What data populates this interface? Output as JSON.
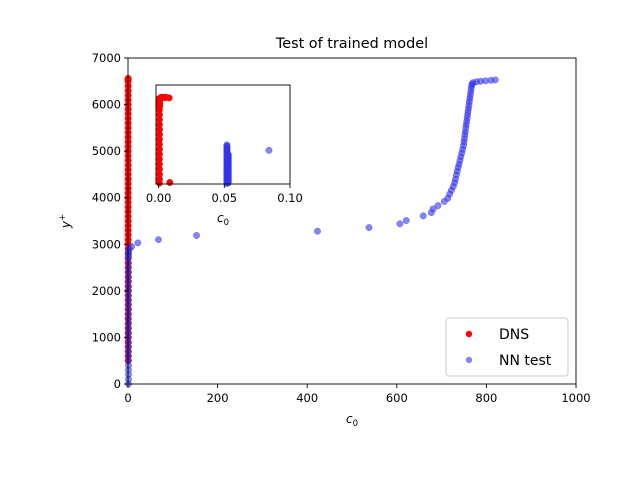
{
  "chart_data": [
    {
      "type": "scatter",
      "title": "Test of trained model",
      "xlabel_base": "c",
      "xlabel_sub": "0",
      "ylabel_base": "y",
      "ylabel_sup": "+",
      "xlim": [
        0,
        1000
      ],
      "ylim": [
        0,
        7000
      ],
      "xticks": [
        0,
        200,
        400,
        600,
        800,
        1000
      ],
      "xtick_labels": [
        "0",
        "200",
        "400",
        "600",
        "800",
        "1000"
      ],
      "yticks": [
        0,
        1000,
        2000,
        3000,
        4000,
        5000,
        6000,
        7000
      ],
      "ytick_labels": [
        "0",
        "1000",
        "2000",
        "3000",
        "4000",
        "5000",
        "6000",
        "7000"
      ],
      "grid": false,
      "legend_placement": "bottom-right",
      "series": [
        {
          "name": "DNS",
          "color": "#ff0000",
          "x": [
            0.3,
            0.3,
            0.3,
            0.3,
            0.3,
            0.3,
            0.3,
            0.3,
            0.3,
            0.3,
            0.3,
            0.3,
            0.3,
            0.3,
            0.3,
            0.3,
            0.3,
            0.3,
            0.3,
            0.3,
            0.3,
            0.3,
            0.3,
            0.3,
            0.3,
            0.3,
            0.3,
            0.3,
            0.3,
            0.3,
            0.3,
            0.3,
            0.3,
            0.3,
            0.3,
            0.3,
            0.3,
            0.3,
            0.3,
            0.3,
            0.3,
            0.3,
            0.3,
            0.3,
            0.3,
            0.3,
            0.3,
            0.3,
            0.3,
            0.3,
            0.3,
            0.3,
            0.3,
            0.3,
            0.3,
            0.3,
            0.3,
            0.3,
            0.3,
            0.3,
            0.3,
            0.3,
            0.3,
            0.3,
            0.3,
            0.3,
            0.3
          ],
          "y": [
            4100,
            4200,
            4300,
            4400,
            4500,
            4600,
            4700,
            4800,
            4900,
            5000,
            5100,
            5200,
            5300,
            5400,
            5500,
            5600,
            5700,
            5800,
            5900,
            6000,
            6100,
            6200,
            6300,
            6400,
            6500,
            6560,
            6550,
            6540,
            6530,
            6520,
            6510,
            4000,
            3900,
            3800,
            3700,
            3600,
            3500,
            3400,
            3300,
            3200,
            3100,
            3000,
            2900,
            2800,
            2700,
            2600,
            2500,
            2400,
            2300,
            2200,
            2100,
            2000,
            1900,
            1800,
            1700,
            1600,
            1500,
            1400,
            1300,
            1200,
            1100,
            1000,
            900,
            800,
            700,
            600,
            500
          ]
        },
        {
          "name": "NN test",
          "color": "#3333ee",
          "x": [
            1,
            1,
            1,
            1,
            1,
            1,
            1,
            1,
            1,
            1,
            1,
            1,
            1,
            1,
            1,
            1,
            1,
            1,
            1,
            1,
            1,
            1,
            1,
            1,
            1,
            1,
            1,
            1,
            1,
            1,
            1,
            3,
            8,
            22,
            68,
            153,
            423,
            538,
            607,
            621,
            659,
            677,
            681,
            692,
            706,
            714,
            718,
            722,
            726,
            729,
            731,
            733,
            735,
            737,
            739,
            741,
            743,
            745,
            747,
            749,
            750,
            751,
            752,
            753,
            754,
            755,
            756,
            757,
            758,
            759,
            760,
            761,
            762,
            763,
            764,
            765,
            766,
            767,
            768,
            770,
            778,
            787,
            798,
            810,
            820
          ],
          "y": [
            0,
            100,
            200,
            300,
            400,
            500,
            600,
            700,
            800,
            900,
            1000,
            1100,
            1200,
            1300,
            1400,
            1500,
            1600,
            1700,
            1800,
            1900,
            2000,
            2100,
            2200,
            2300,
            2400,
            2500,
            2600,
            2700,
            2750,
            2800,
            2850,
            2900,
            2950,
            3030,
            3100,
            3190,
            3280,
            3360,
            3440,
            3510,
            3610,
            3680,
            3760,
            3830,
            3920,
            3990,
            4080,
            4160,
            4240,
            4320,
            4400,
            4490,
            4570,
            4650,
            4720,
            4800,
            4880,
            4960,
            5040,
            5120,
            5200,
            5270,
            5350,
            5420,
            5500,
            5570,
            5640,
            5710,
            5780,
            5850,
            5920,
            5990,
            6060,
            6130,
            6200,
            6270,
            6340,
            6400,
            6440,
            6470,
            6490,
            6500,
            6510,
            6520,
            6530
          ]
        }
      ]
    },
    {
      "type": "scatter",
      "title": "",
      "xlabel_base": "c",
      "xlabel_sub": "0",
      "xlim": [
        -0.002,
        0.1
      ],
      "ylim": [
        5000,
        7000
      ],
      "xticks": [
        0.0,
        0.05,
        0.1
      ],
      "xtick_labels": [
        "0.00",
        "0.05",
        "0.10"
      ],
      "legend_placement": "none",
      "series": [
        {
          "name": "DNS",
          "color": "#ff0000",
          "x": [
            0.0006,
            0.0006,
            0.0006,
            0.0006,
            0.0006,
            0.0006,
            0.0006,
            0.0006,
            0.0006,
            0.0006,
            0.0006,
            0.0006,
            0.0006,
            0.0006,
            0.0006,
            0.0006,
            0.0006,
            0.0006,
            0.0006,
            0.0006,
            0.0006,
            0.0006,
            0.0006,
            0.0006,
            0.0006,
            0.0006,
            0.0006,
            0.0006,
            0.0006,
            0.0006,
            0.0006,
            0.0006,
            0.0006,
            0.0006,
            0.002,
            0.003,
            0.004,
            0.0045,
            0.005,
            0.0055,
            0.008,
            0.0085
          ],
          "y": [
            5020,
            5100,
            5200,
            5300,
            5400,
            5500,
            5600,
            5700,
            5800,
            5900,
            6000,
            6100,
            6200,
            6300,
            6400,
            6500,
            6560,
            6570,
            6580,
            6590,
            6600,
            6610,
            6620,
            6630,
            6640,
            6650,
            6660,
            6670,
            6680,
            6690,
            6700,
            6710,
            6720,
            6730,
            6750,
            6750,
            6750,
            6750,
            6750,
            6750,
            6740,
            5030
          ]
        },
        {
          "name": "NN test",
          "color": "#3333ee",
          "x": [
            0.052,
            0.052,
            0.052,
            0.052,
            0.052,
            0.052,
            0.052,
            0.052,
            0.052,
            0.052,
            0.052,
            0.052,
            0.052,
            0.052,
            0.052,
            0.052,
            0.052,
            0.052,
            0.052,
            0.052,
            0.052,
            0.052,
            0.052,
            0.052,
            0.052,
            0.052,
            0.052,
            0.052,
            0.052,
            0.052,
            0.052,
            0.052,
            0.052,
            0.052,
            0.052,
            0.052,
            0.052,
            0.052,
            0.052,
            0.052,
            0.053,
            0.053,
            0.053,
            0.053,
            0.053,
            0.053,
            0.053,
            0.053,
            0.053,
            0.053,
            0.053,
            0.053,
            0.053,
            0.053,
            0.053,
            0.053,
            0.053,
            0.053,
            0.053,
            0.053,
            0.053,
            0.053,
            0.053,
            0.053,
            0.053,
            0.053,
            0.053,
            0.053,
            0.053,
            0.053,
            0.084
          ],
          "y": [
            5010,
            5030,
            5050,
            5070,
            5090,
            5110,
            5130,
            5150,
            5170,
            5190,
            5210,
            5230,
            5250,
            5270,
            5290,
            5310,
            5330,
            5350,
            5370,
            5390,
            5410,
            5430,
            5450,
            5470,
            5490,
            5510,
            5530,
            5550,
            5570,
            5590,
            5610,
            5630,
            5650,
            5670,
            5690,
            5710,
            5730,
            5750,
            5770,
            5790,
            5020,
            5040,
            5060,
            5080,
            5100,
            5120,
            5140,
            5160,
            5180,
            5200,
            5220,
            5240,
            5260,
            5280,
            5300,
            5320,
            5340,
            5360,
            5380,
            5400,
            5420,
            5440,
            5460,
            5480,
            5500,
            5520,
            5540,
            5560,
            5580,
            5600,
            5680
          ]
        }
      ]
    }
  ]
}
